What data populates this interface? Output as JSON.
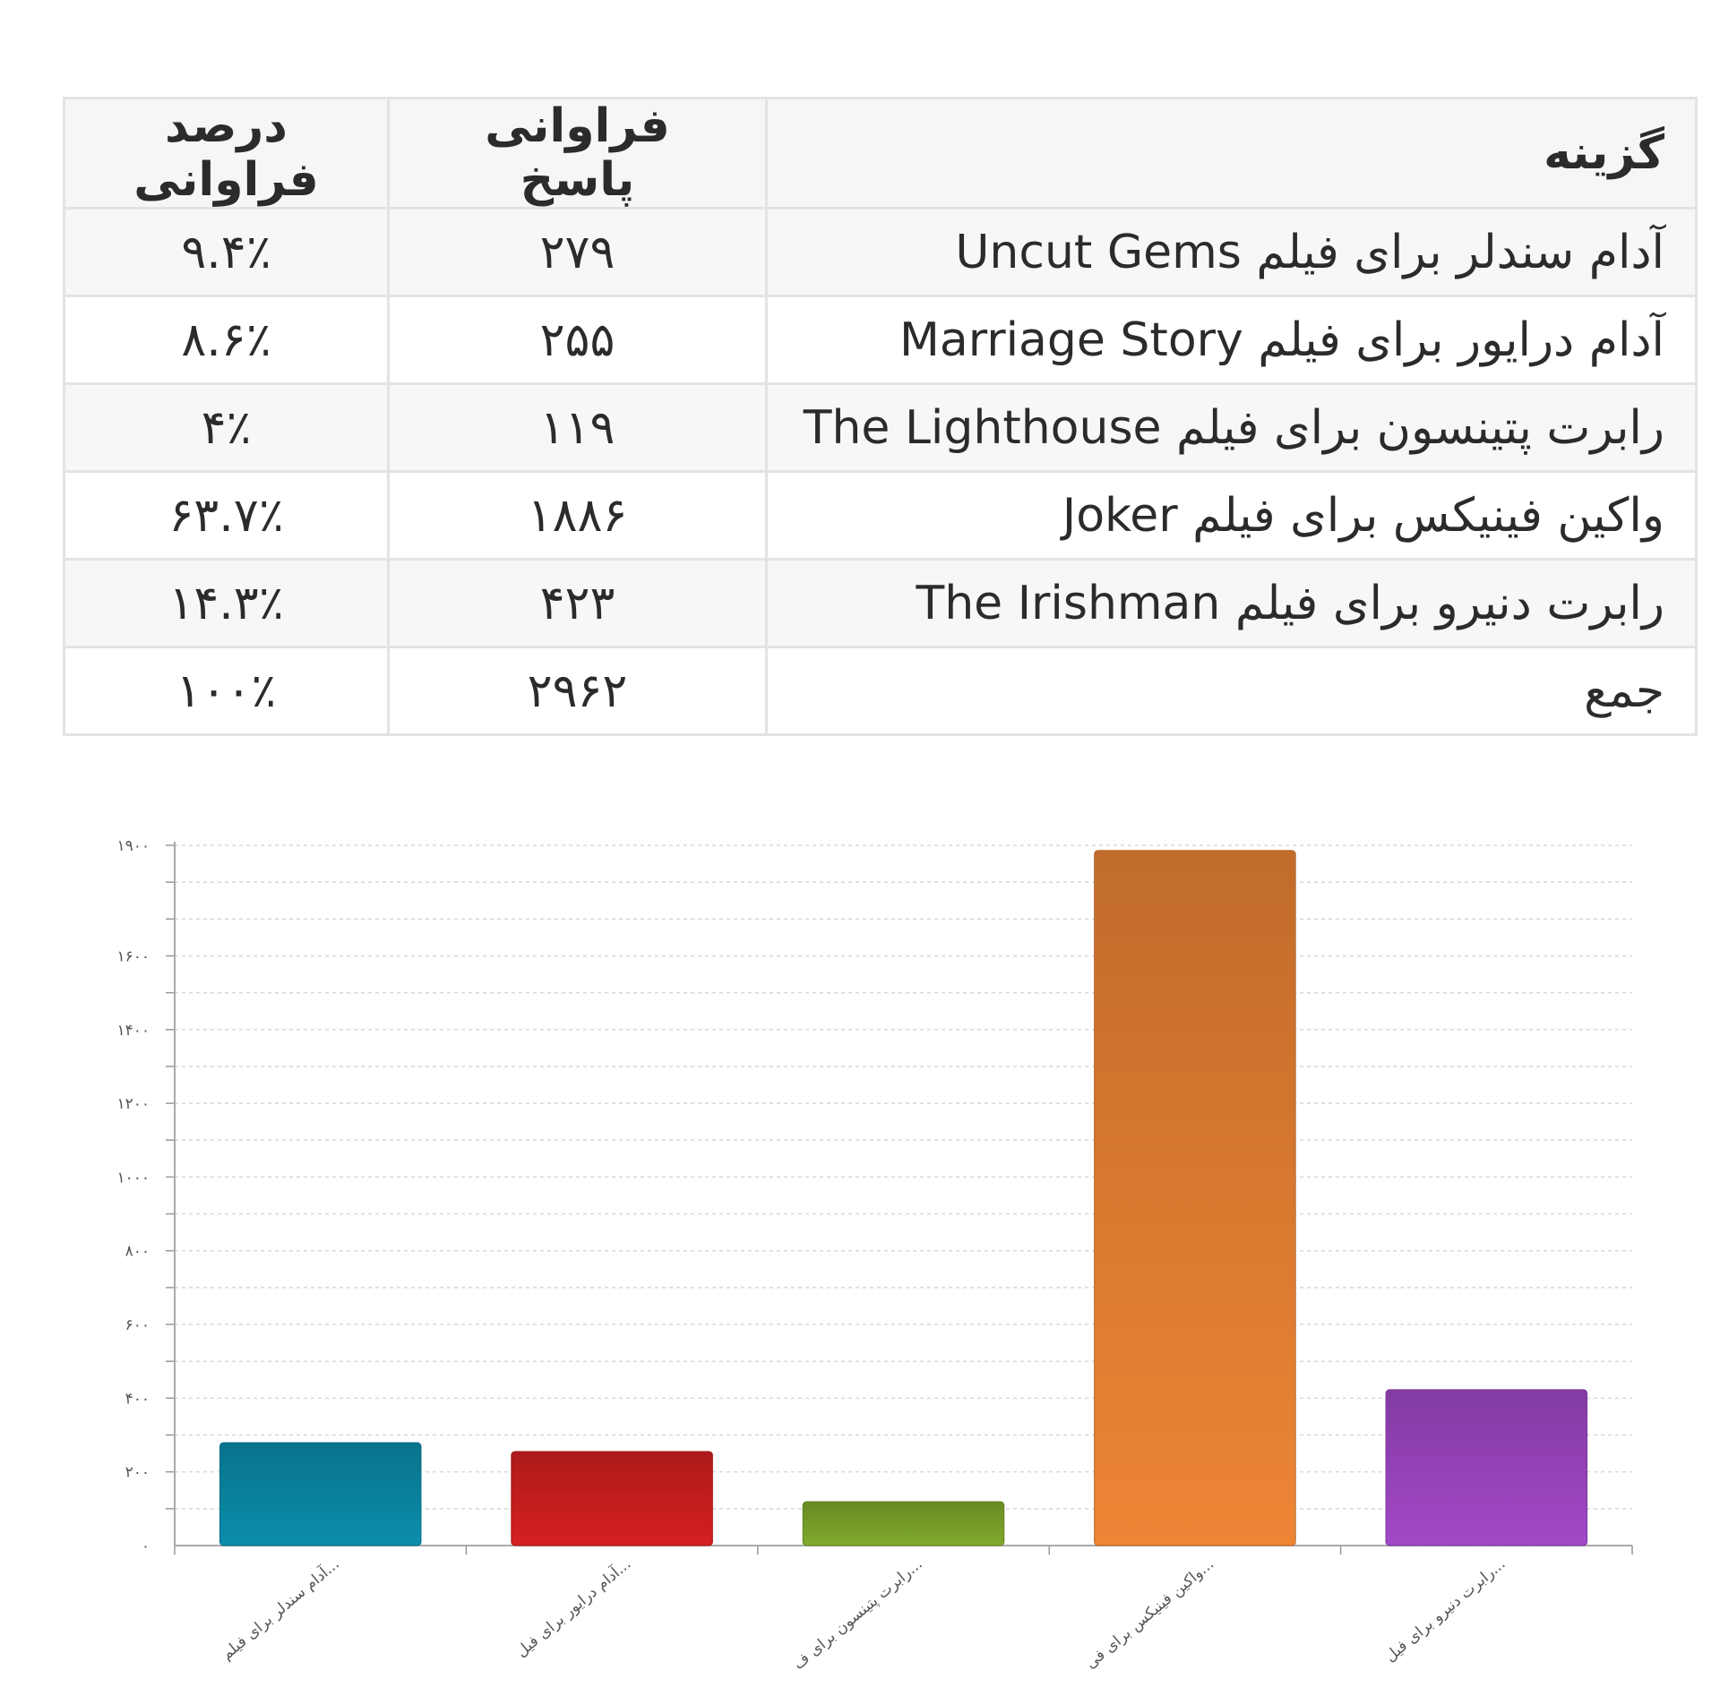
{
  "table": {
    "headers": {
      "option": "گزینه",
      "frequency": "فراوانی پاسخ",
      "percent": "درصد فراوانی"
    },
    "rows": [
      {
        "option": "آدام سندلر برای فیلم Uncut Gems",
        "frequency": "۲۷۹",
        "percent": "۹.۴٪"
      },
      {
        "option": "آدام درایور برای فیلم Marriage Story",
        "frequency": "۲۵۵",
        "percent": "۸.۶٪"
      },
      {
        "option": "رابرت پتینسون برای فیلم The Lighthouse",
        "frequency": "۱۱۹",
        "percent": "۴٪"
      },
      {
        "option": "واکین فینیکس برای فیلم Joker",
        "frequency": "۱۸۸۶",
        "percent": "۶۳.۷٪"
      },
      {
        "option": "رابرت دنیرو برای فیلم The Irishman",
        "frequency": "۴۲۳",
        "percent": "۱۴.۳٪"
      }
    ],
    "total": {
      "option": "جمع",
      "frequency": "۲۹۶۲",
      "percent": "۱۰۰٪"
    }
  },
  "chart_data": {
    "type": "bar",
    "categories": [
      "آدام سندلر برای فیلم...",
      "آدام درایور برای فیل...",
      "رابرت پتینسون برای ف...",
      "واکین فینیکس برای فی...",
      "رابرت دنیرو برای فیل..."
    ],
    "values": [
      279,
      255,
      119,
      1886,
      423
    ],
    "colors": [
      "#0a87a4",
      "#cc1e1e",
      "#7aa22a",
      "#e37f32",
      "#9a45be"
    ],
    "ylim": [
      0,
      1900
    ],
    "y_tick_labels": [
      "۰",
      "۲۰۰",
      "۴۰۰",
      "۶۰۰",
      "۸۰۰",
      "۱۰۰۰",
      "۱۲۰۰",
      "۱۴۰۰",
      "۱۶۰۰",
      "۱۹۰۰"
    ],
    "y_tick_values": [
      0,
      200,
      400,
      600,
      800,
      1000,
      1200,
      1400,
      1600,
      1900
    ],
    "grid": true,
    "gridline_step": 100,
    "title": "",
    "xlabel": "",
    "ylabel": ""
  }
}
